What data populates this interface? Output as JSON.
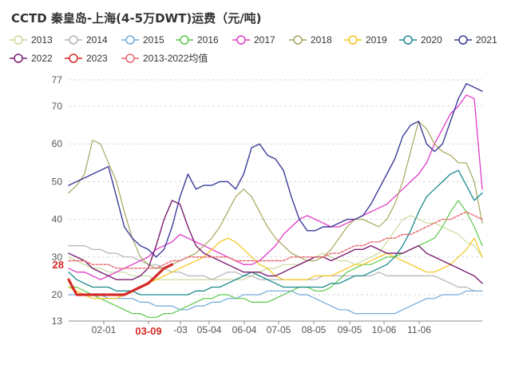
{
  "chart_data": {
    "type": "line",
    "title": "CCTD 秦皇岛-上海(4-5万DWT)运费（元/吨)",
    "xlabel": "",
    "ylabel": "",
    "ylim": [
      13,
      77
    ],
    "y_ticks": [
      13,
      20,
      30,
      40,
      50,
      60,
      70,
      77
    ],
    "x_tick_labels": [
      "02-01",
      "03-09",
      "-03",
      "05-04",
      "06-04",
      "07-05",
      "08-05",
      "09-05",
      "10-06",
      "11-06"
    ],
    "highlight_x_label": "03-09",
    "highlight_value_label": "28",
    "highlight_value": 28,
    "grid": true,
    "legend_position": "top",
    "series": [
      {
        "name": "2013",
        "color": "#c9dc9b",
        "width": 1.2,
        "dashed": false,
        "values": [
          30,
          29,
          28,
          27,
          27,
          26,
          26,
          26,
          25,
          25,
          25,
          24,
          24,
          24,
          24,
          24,
          24,
          24,
          24,
          24,
          24,
          24,
          24,
          25,
          26,
          27,
          27,
          28,
          28,
          28,
          29,
          30,
          31,
          30,
          29,
          29,
          28,
          29,
          30,
          31,
          34,
          37,
          40,
          41,
          40,
          39,
          39,
          38,
          37,
          36,
          34,
          33,
          30
        ]
      },
      {
        "name": "2014",
        "color": "#b3b3b3",
        "width": 1.2,
        "dashed": false,
        "values": [
          33,
          33,
          33,
          32,
          32,
          31,
          31,
          30,
          30,
          29,
          28,
          28,
          27,
          26,
          26,
          25,
          25,
          25,
          24,
          25,
          26,
          26,
          25,
          25,
          24,
          24,
          24,
          24,
          24,
          24,
          24,
          24,
          25,
          25,
          25,
          25,
          25,
          25,
          25,
          26,
          25,
          25,
          25,
          25,
          25,
          25,
          25,
          24,
          23,
          22,
          22,
          21,
          21
        ]
      },
      {
        "name": "2015",
        "color": "#6fa8dc",
        "width": 1.2,
        "dashed": false,
        "values": [
          20,
          20,
          20,
          20,
          20,
          19,
          19,
          19,
          19,
          18,
          18,
          17,
          17,
          17,
          16,
          16,
          17,
          17,
          18,
          18,
          19,
          19,
          20,
          20,
          20,
          21,
          21,
          21,
          21,
          20,
          20,
          19,
          18,
          17,
          16,
          16,
          15,
          15,
          15,
          15,
          15,
          15,
          16,
          17,
          18,
          19,
          19,
          20,
          20,
          20,
          21,
          21,
          21
        ]
      },
      {
        "name": "2016",
        "color": "#5bc94a",
        "width": 1.2,
        "dashed": false,
        "values": [
          22,
          22,
          21,
          20,
          19,
          18,
          17,
          16,
          15,
          15,
          14,
          14,
          15,
          15,
          16,
          17,
          18,
          19,
          19,
          20,
          20,
          19,
          19,
          18,
          18,
          18,
          19,
          20,
          21,
          22,
          22,
          21,
          21,
          22,
          24,
          26,
          27,
          28,
          28,
          29,
          30,
          30,
          31,
          32,
          33,
          34,
          35,
          38,
          42,
          45,
          42,
          38,
          33
        ]
      },
      {
        "name": "2017",
        "color": "#e13bc8",
        "width": 1.3,
        "dashed": false,
        "values": [
          27,
          26,
          26,
          25,
          24,
          25,
          26,
          27,
          28,
          29,
          30,
          32,
          33,
          34,
          36,
          35,
          34,
          33,
          32,
          31,
          30,
          29,
          28,
          28,
          29,
          31,
          33,
          36,
          38,
          40,
          41,
          40,
          39,
          38,
          38,
          39,
          40,
          41,
          42,
          43,
          44,
          46,
          48,
          50,
          52,
          55,
          60,
          64,
          68,
          70,
          73,
          72,
          48
        ]
      },
      {
        "name": "2018",
        "color": "#a8a55c",
        "width": 1.2,
        "dashed": false,
        "values": [
          47,
          49,
          52,
          61,
          60,
          55,
          50,
          42,
          35,
          30,
          28,
          27,
          27,
          28,
          29,
          30,
          31,
          33,
          35,
          38,
          42,
          46,
          48,
          46,
          42,
          38,
          35,
          33,
          31,
          30,
          29,
          29,
          30,
          32,
          35,
          38,
          40,
          40,
          39,
          38,
          40,
          44,
          50,
          58,
          66,
          64,
          60,
          58,
          57,
          55,
          55,
          50,
          39
        ]
      },
      {
        "name": "2019",
        "color": "#f5c518",
        "width": 1.2,
        "dashed": false,
        "values": [
          22,
          21,
          20,
          19,
          19,
          19,
          19,
          20,
          21,
          22,
          23,
          24,
          25,
          26,
          27,
          28,
          29,
          30,
          32,
          34,
          35,
          34,
          32,
          30,
          28,
          27,
          25,
          24,
          24,
          24,
          24,
          25,
          25,
          25,
          26,
          27,
          28,
          28,
          29,
          30,
          31,
          30,
          29,
          28,
          27,
          26,
          26,
          27,
          28,
          30,
          32,
          35,
          30
        ]
      },
      {
        "name": "2020",
        "color": "#1b8a8f",
        "width": 1.3,
        "dashed": false,
        "values": [
          26,
          24,
          23,
          22,
          22,
          22,
          21,
          21,
          21,
          20,
          20,
          20,
          20,
          20,
          20,
          20,
          21,
          21,
          22,
          22,
          23,
          24,
          25,
          26,
          25,
          24,
          23,
          22,
          22,
          22,
          22,
          22,
          22,
          23,
          23,
          24,
          25,
          25,
          26,
          27,
          28,
          30,
          33,
          37,
          42,
          46,
          48,
          50,
          52,
          53,
          49,
          45,
          47
        ]
      },
      {
        "name": "2021",
        "color": "#3b3b9a",
        "width": 1.4,
        "dashed": false,
        "values": [
          49,
          50,
          51,
          52,
          53,
          54,
          46,
          38,
          35,
          33,
          32,
          30,
          32,
          38,
          46,
          52,
          48,
          49,
          49,
          50,
          50,
          48,
          52,
          59,
          60,
          57,
          56,
          53,
          46,
          40,
          37,
          37,
          38,
          38,
          39,
          40,
          40,
          41,
          44,
          48,
          52,
          56,
          62,
          65,
          66,
          60,
          58,
          60,
          66,
          72,
          76,
          75,
          74
        ]
      },
      {
        "name": "2022",
        "color": "#7b1c6f",
        "width": 1.4,
        "dashed": false,
        "values": [
          31,
          30,
          29,
          27,
          26,
          25,
          24,
          24,
          24,
          25,
          27,
          33,
          40,
          45,
          44,
          38,
          33,
          31,
          30,
          29,
          28,
          27,
          26,
          26,
          26,
          25,
          25,
          26,
          27,
          28,
          29,
          30,
          30,
          29,
          30,
          31,
          32,
          32,
          33,
          32,
          31,
          31,
          31,
          32,
          33,
          31,
          30,
          29,
          28,
          27,
          26,
          25,
          23
        ]
      },
      {
        "name": "2023",
        "color": "#d42a27",
        "width": 3.2,
        "dashed": false,
        "values": [
          24,
          20,
          20,
          20,
          20,
          20,
          20,
          20,
          21,
          22,
          23,
          25,
          27,
          28
        ]
      },
      {
        "name": "2013-2022均值",
        "color": "#e8666a",
        "width": 1.4,
        "dashed": true,
        "values": [
          29,
          29,
          29,
          28,
          28,
          28,
          27,
          27,
          27,
          27,
          27,
          27,
          28,
          29,
          29,
          30,
          30,
          30,
          30,
          30,
          30,
          29,
          29,
          29,
          29,
          29,
          29,
          29,
          30,
          30,
          30,
          30,
          30,
          31,
          31,
          32,
          33,
          33,
          34,
          34,
          35,
          35,
          36,
          36,
          37,
          38,
          39,
          40,
          40,
          41,
          42,
          41,
          40
        ]
      }
    ]
  }
}
